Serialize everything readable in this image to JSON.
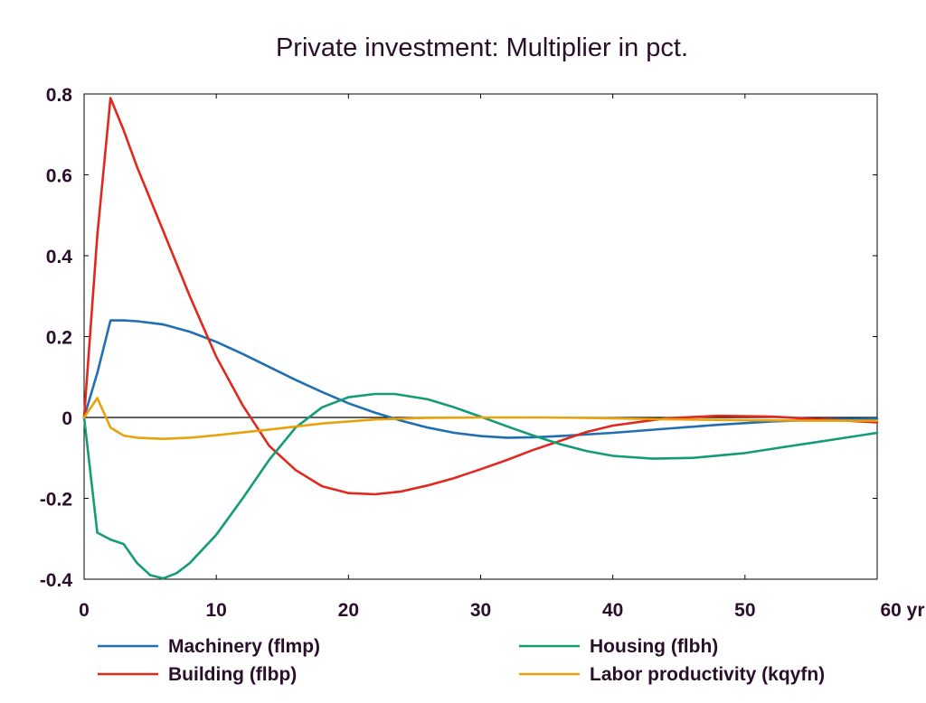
{
  "chart_data": {
    "type": "line",
    "title": "Private investment: Multiplier in pct.",
    "xlim": [
      0,
      60
    ],
    "ylim": [
      -0.4,
      0.8
    ],
    "x_ticks": [
      0,
      10,
      20,
      30,
      40,
      50,
      60
    ],
    "x_tick_labels": [
      "0",
      "10",
      "20",
      "30",
      "40",
      "50",
      "60 yr"
    ],
    "y_ticks": [
      -0.4,
      -0.2,
      0,
      0.2,
      0.4,
      0.6,
      0.8
    ],
    "y_tick_labels": [
      "-0.4",
      "-0.2",
      "0",
      "0.2",
      "0.4",
      "0.6",
      "0.8"
    ],
    "grid": false,
    "zero_line": true,
    "legend_position": "bottom",
    "series": [
      {
        "name": "Machinery (flmp)",
        "color": "#1f6fb2",
        "x": [
          0,
          1,
          2,
          3,
          4,
          6,
          8,
          10,
          12,
          14,
          16,
          18,
          20,
          22,
          24,
          26,
          28,
          30,
          32,
          34,
          36,
          40,
          44,
          48,
          52,
          56,
          60
        ],
        "y": [
          0,
          0.11,
          0.24,
          0.24,
          0.238,
          0.23,
          0.212,
          0.187,
          0.157,
          0.125,
          0.093,
          0.063,
          0.035,
          0.012,
          -0.008,
          -0.025,
          -0.038,
          -0.046,
          -0.05,
          -0.049,
          -0.046,
          -0.038,
          -0.028,
          -0.018,
          -0.01,
          -0.005,
          -0.003
        ]
      },
      {
        "name": "Building (flbp)",
        "color": "#e0281e",
        "x": [
          0,
          1,
          2,
          3,
          4,
          6,
          8,
          10,
          12,
          14,
          16,
          18,
          20,
          22,
          24,
          26,
          28,
          30,
          32,
          34,
          36,
          38,
          40,
          44,
          48,
          52,
          56,
          60
        ],
        "y": [
          0,
          0.45,
          0.79,
          0.71,
          0.62,
          0.46,
          0.3,
          0.15,
          0.03,
          -0.07,
          -0.13,
          -0.17,
          -0.187,
          -0.19,
          -0.183,
          -0.168,
          -0.15,
          -0.128,
          -0.105,
          -0.08,
          -0.058,
          -0.036,
          -0.02,
          -0.002,
          0.004,
          0.002,
          -0.005,
          -0.012
        ]
      },
      {
        "name": "Housing (flbh)",
        "color": "#149b77",
        "x": [
          0,
          1,
          2,
          3,
          4,
          5,
          6,
          7,
          8,
          10,
          12,
          14,
          16,
          18,
          20,
          22,
          23.5,
          26,
          28,
          30,
          32,
          34,
          36,
          38,
          40,
          43,
          46,
          50,
          54,
          58,
          60
        ],
        "y": [
          0,
          -0.285,
          -0.302,
          -0.313,
          -0.36,
          -0.39,
          -0.398,
          -0.385,
          -0.36,
          -0.29,
          -0.2,
          -0.105,
          -0.025,
          0.025,
          0.05,
          0.058,
          0.058,
          0.045,
          0.025,
          0.002,
          -0.022,
          -0.045,
          -0.066,
          -0.083,
          -0.095,
          -0.102,
          -0.1,
          -0.088,
          -0.068,
          -0.048,
          -0.038
        ]
      },
      {
        "name": "Labor productivity (kqyfn)",
        "color": "#e8a20c",
        "x": [
          0,
          1,
          2,
          3,
          4,
          6,
          8,
          10,
          14,
          18,
          22,
          26,
          30,
          35,
          40,
          45,
          50,
          55,
          60
        ],
        "y": [
          0,
          0.048,
          -0.025,
          -0.045,
          -0.05,
          -0.053,
          -0.05,
          -0.044,
          -0.03,
          -0.015,
          -0.005,
          -0.001,
          0,
          0,
          -0.002,
          -0.005,
          -0.007,
          -0.008,
          -0.008
        ]
      }
    ]
  }
}
